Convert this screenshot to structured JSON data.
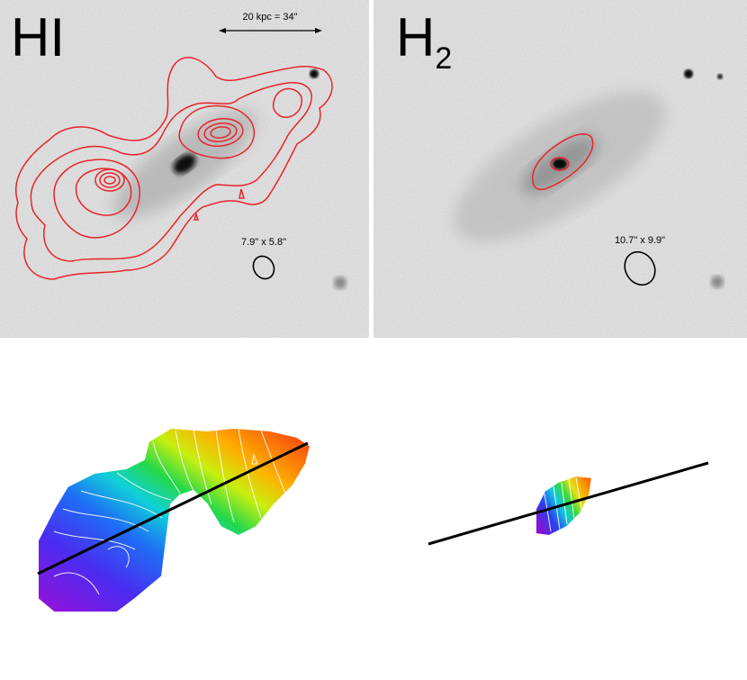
{
  "panels": [
    {
      "label": "HI",
      "scale_bar": "20 kpc = 34\"",
      "beam": "7.9\" x 5.8\""
    },
    {
      "label": "H",
      "subscript": "2",
      "beam": "10.7\" x 9.9\""
    }
  ]
}
